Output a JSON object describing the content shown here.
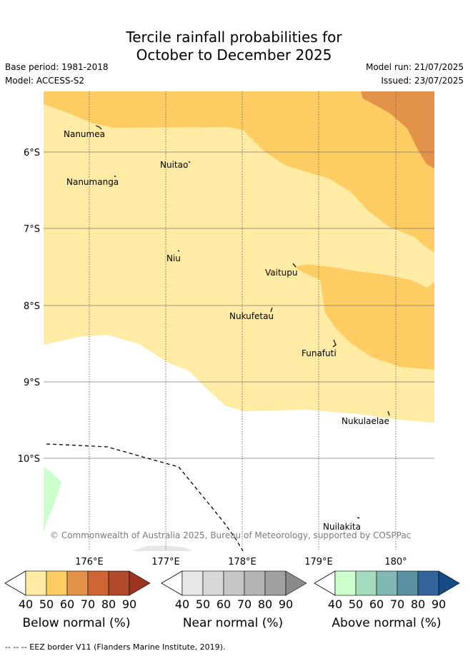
{
  "title_line1": "Tercile rainfall probabilities for",
  "title_line2": "October to December 2025",
  "base_period": "Base period: 1981-2018",
  "model": "Model: ACCESS-S2",
  "model_run": "Model run: 21/07/2025",
  "issued": "Issued: 23/07/2025",
  "latitude_labels": [
    "6°S",
    "7°S",
    "8°S",
    "9°S",
    "10°S"
  ],
  "longitude_labels": [
    "176°E",
    "177°E",
    "178°E",
    "179°E",
    "180°"
  ],
  "places": {
    "nanumea": "Nanumea",
    "nuitao": "Nuitao",
    "nanumanga": "Nanumanga",
    "niu": "Niu",
    "vaitupu": "Vaitupu",
    "nukufetau": "Nukufetau",
    "funafuti": "Funafuti",
    "nukulaelae": "Nukulaelae",
    "nuilakita": "Nuilakita"
  },
  "copyright": "© Commonwealth of Australia 2025, Bureau of Meteorology, supported by COSPPac",
  "colorbars": [
    {
      "label": "Below normal (%)",
      "ticks": [
        "40",
        "50",
        "60",
        "70",
        "80",
        "90"
      ],
      "colors": [
        "#ffeba4",
        "#fdcc63",
        "#e3924a",
        "#cf6434",
        "#b04a2a",
        "#9c3321"
      ]
    },
    {
      "label": "Near normal (%)",
      "ticks": [
        "40",
        "50",
        "60",
        "70",
        "80",
        "90"
      ],
      "colors": [
        "#e7e7e7",
        "#d8d8d8",
        "#c6c6c6",
        "#b3b3b3",
        "#a0a0a0",
        "#8a8a8a"
      ]
    },
    {
      "label": "Above normal (%)",
      "ticks": [
        "40",
        "50",
        "60",
        "70",
        "80",
        "90"
      ],
      "colors": [
        "#caffcc",
        "#a3dbbe",
        "#80b8b4",
        "#5a92a4",
        "#33649b",
        "#174b86"
      ]
    }
  ],
  "footer": "-- -- -- EEZ border V11 (Flanders Marine Institute, 2019).",
  "colors": {
    "below_40_50": "#ffeba4",
    "below_50_60": "#fdcc63",
    "below_60_70": "#e3924a",
    "above_40_50": "#caffcc",
    "near_40_50": "#e7e7e7"
  }
}
